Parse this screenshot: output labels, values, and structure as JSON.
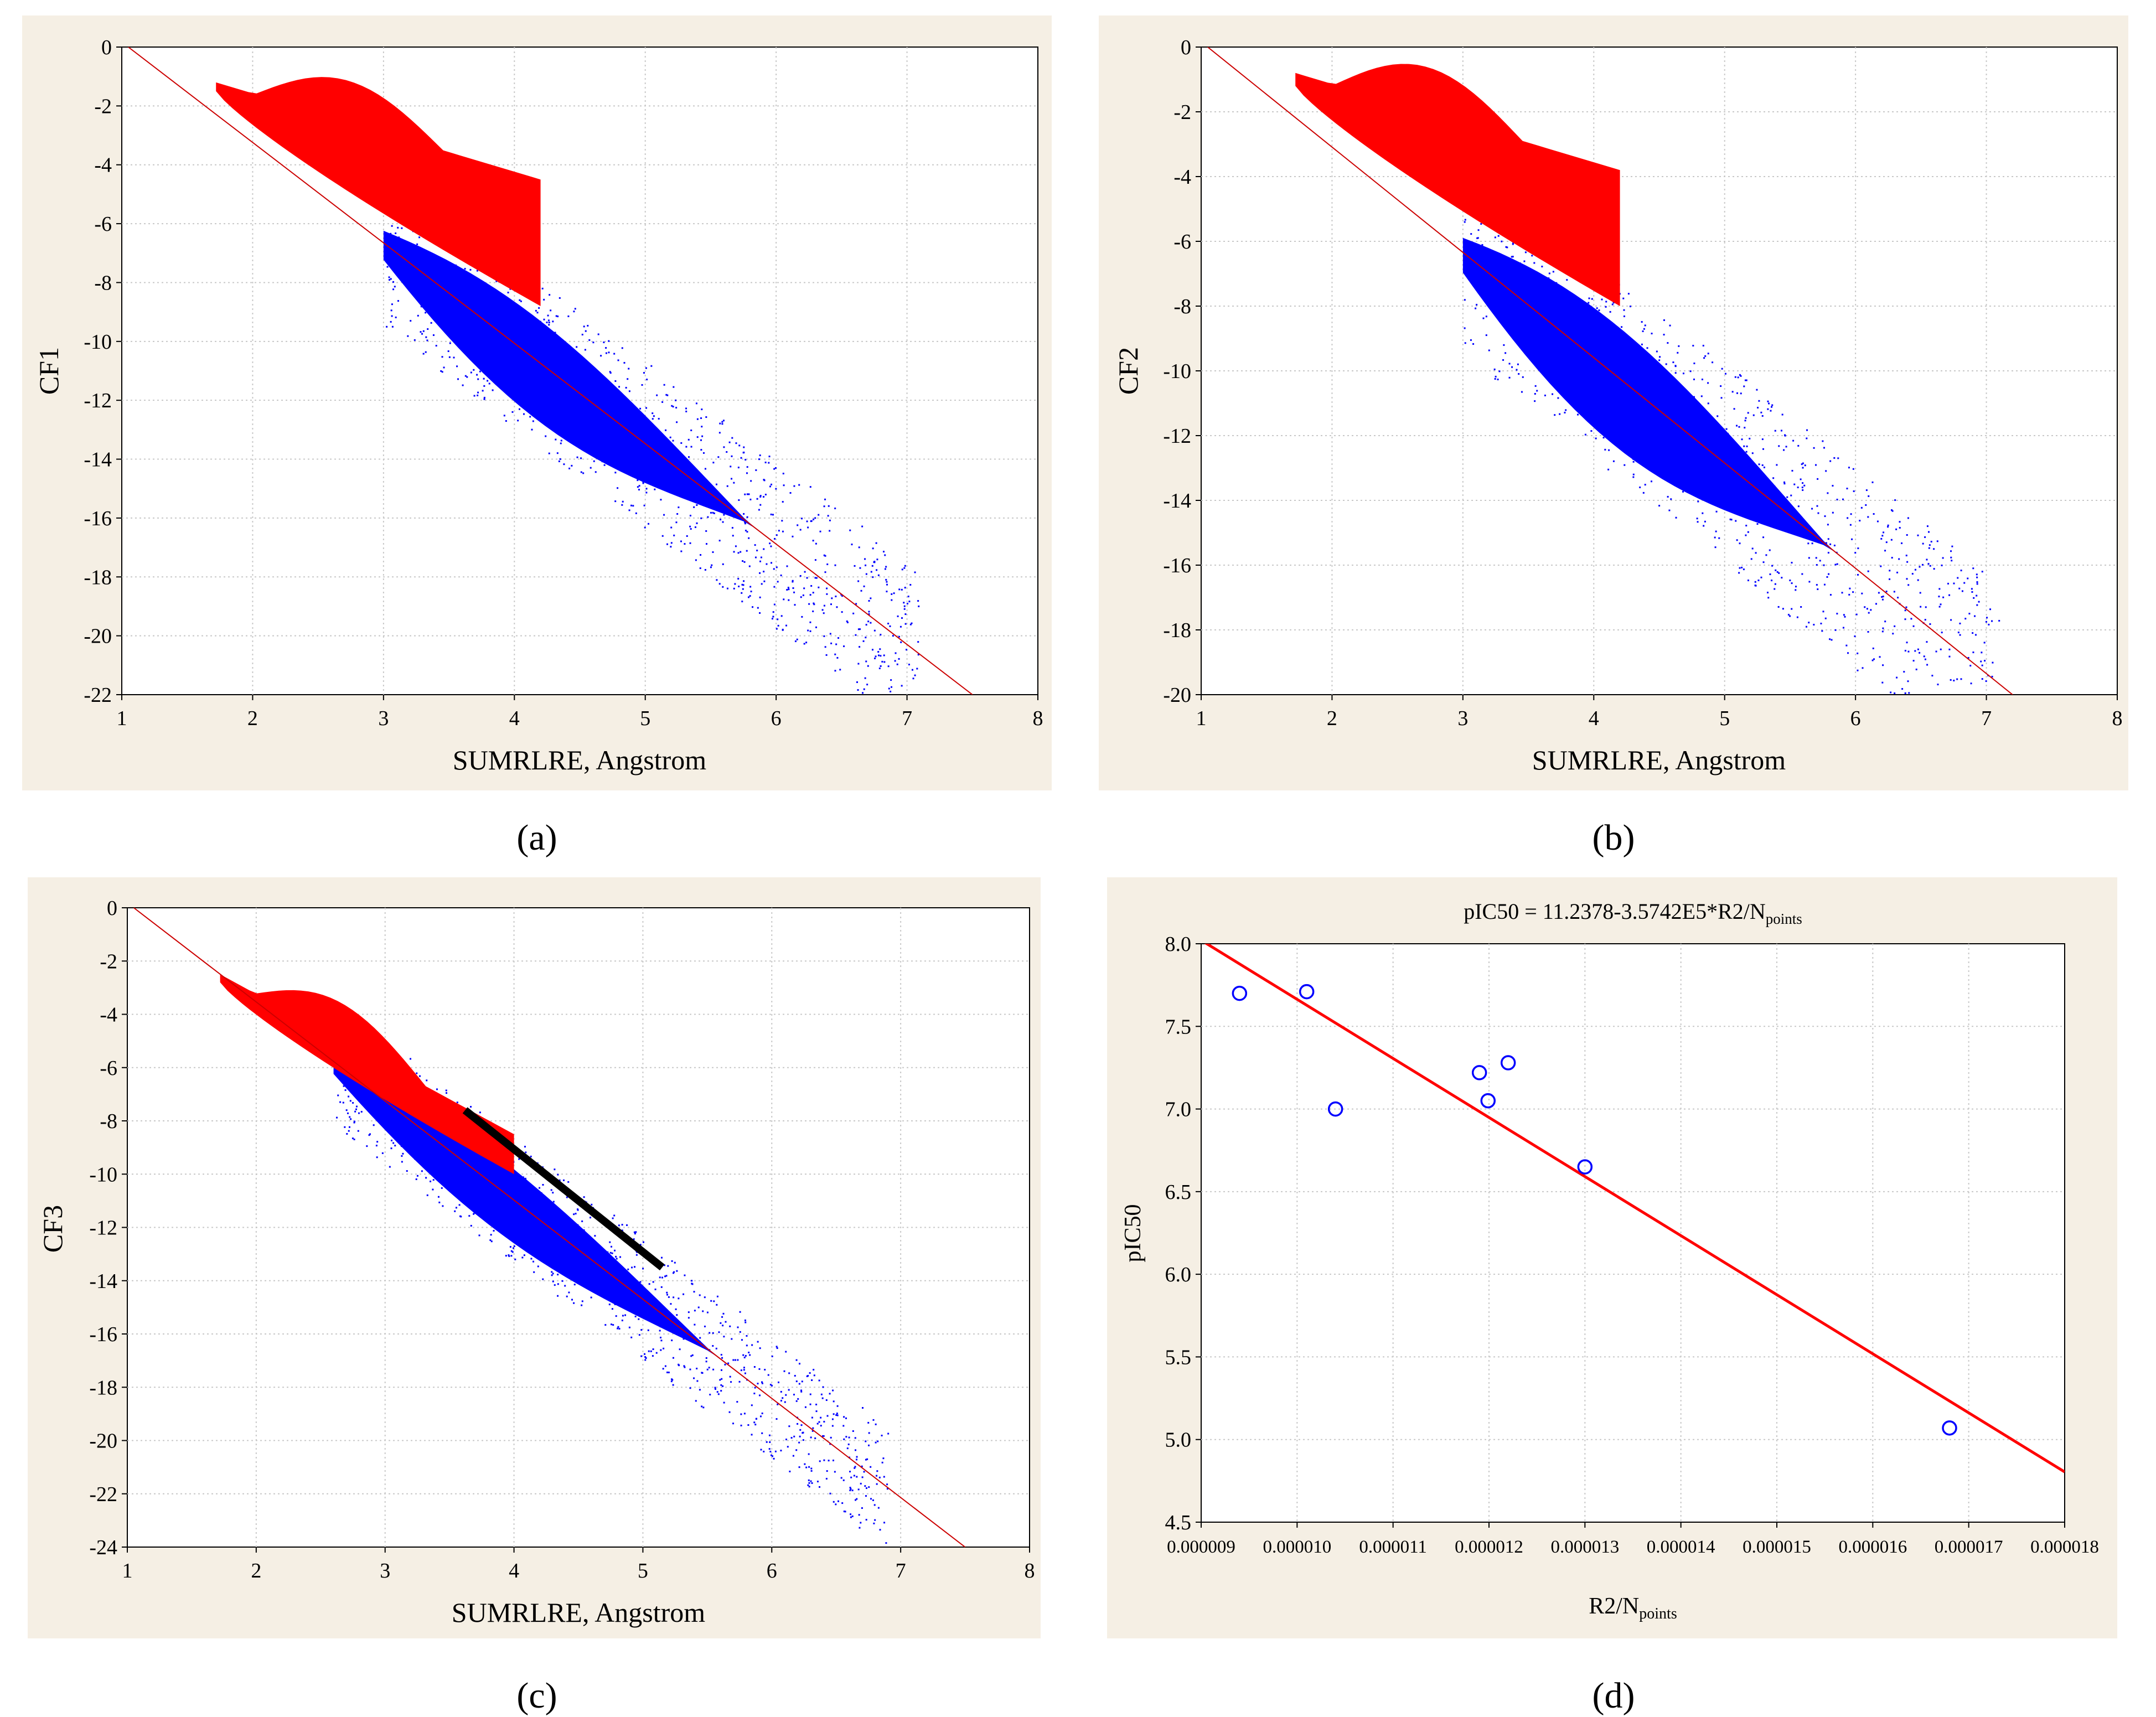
{
  "figure": {
    "panel_labels": [
      "(a)",
      "(b)",
      "(c)",
      "(d)"
    ],
    "colors": {
      "panel_background": "#f5efe4",
      "plot_background": "#ffffff",
      "grid": "#c8c8c8",
      "class1_points": "#ff0000",
      "class2_points": "#0000ff",
      "fit_line_thin": "#cc0000",
      "fit_line_d": "#ff0000",
      "marker_d": "#0000ff",
      "highlight_line": "#000000"
    }
  },
  "chart_data": [
    {
      "id": "a",
      "type": "scatter",
      "title": "",
      "xlabel": "SUMRLRE, Angstrom",
      "ylabel": "CF1",
      "xlim": [
        1,
        8
      ],
      "ylim": [
        -22,
        0
      ],
      "xticks": [
        "1",
        "2",
        "3",
        "4",
        "5",
        "6",
        "7",
        "8"
      ],
      "yticks": [
        "0",
        "-2",
        "-4",
        "-6",
        "-8",
        "-10",
        "-12",
        "-14",
        "-16",
        "-18",
        "-20",
        "-22"
      ],
      "grid": true,
      "fit_line": {
        "x": [
          1.05,
          7.5
        ],
        "y": [
          0,
          -22
        ]
      },
      "series": [
        {
          "name": "blue",
          "color": "#0000ff",
          "x_range": [
            3.0,
            6.8
          ],
          "y_at": "fit",
          "spread": 2.2
        },
        {
          "name": "red",
          "color": "#ff0000",
          "x_range": [
            1.72,
            4.2
          ],
          "y_upper": [
            -1.2,
            -4.5
          ],
          "y_lower": [
            -1.5,
            -8.8
          ]
        }
      ]
    },
    {
      "id": "b",
      "type": "scatter",
      "title": "",
      "xlabel": "SUMRLRE, Angstrom",
      "ylabel": "CF2",
      "xlim": [
        1,
        8
      ],
      "ylim": [
        -20,
        0
      ],
      "xticks": [
        "1",
        "2",
        "3",
        "4",
        "5",
        "6",
        "7",
        "8"
      ],
      "yticks": [
        "0",
        "-2",
        "-4",
        "-6",
        "-8",
        "-10",
        "-12",
        "-14",
        "-16",
        "-18",
        "-20"
      ],
      "grid": true,
      "fit_line": {
        "x": [
          1.05,
          7.2
        ],
        "y": [
          0,
          -20
        ]
      },
      "series": [
        {
          "name": "blue",
          "color": "#0000ff",
          "x_range": [
            3.0,
            6.8
          ],
          "y_at": "fit",
          "spread": 2.4
        },
        {
          "name": "red",
          "color": "#ff0000",
          "x_range": [
            1.72,
            4.2
          ],
          "y_upper": [
            -0.8,
            -3.8
          ],
          "y_lower": [
            -1.2,
            -8.0
          ]
        }
      ]
    },
    {
      "id": "c",
      "type": "scatter",
      "title": "",
      "xlabel": "SUMRLRE, Angstrom",
      "ylabel": "CF3",
      "xlim": [
        1,
        8
      ],
      "ylim": [
        -24,
        0
      ],
      "xticks": [
        "1",
        "2",
        "3",
        "4",
        "5",
        "6",
        "7",
        "8"
      ],
      "yticks": [
        "0",
        "-2",
        "-4",
        "-6",
        "-8",
        "-10",
        "-12",
        "-14",
        "-16",
        "-18",
        "-20",
        "-22",
        "-24"
      ],
      "grid": true,
      "fit_line": {
        "x": [
          1.05,
          7.5
        ],
        "y": [
          0,
          -24
        ]
      },
      "highlight_line": {
        "x": [
          3.62,
          5.15
        ],
        "y": [
          -7.6,
          -13.5
        ]
      },
      "series": [
        {
          "name": "blue",
          "color": "#0000ff",
          "x_range": [
            2.6,
            6.6
          ],
          "y_at": "fit",
          "spread": 1.8
        },
        {
          "name": "red",
          "color": "#ff0000",
          "x_range": [
            1.72,
            4.0
          ],
          "y_upper": [
            -2.5,
            -8.5
          ],
          "y_lower": [
            -2.8,
            -10.0
          ]
        }
      ]
    },
    {
      "id": "d",
      "type": "scatter",
      "title": "pIC50 = 11.2378-3.5742E5*R2/N",
      "title_sub": "points",
      "xlabel": "R2/N",
      "xlabel_sub": "points",
      "ylabel": "pIC50",
      "xlim": [
        9e-06,
        1.8e-05
      ],
      "ylim": [
        4.5,
        8.0
      ],
      "xticks": [
        "0.000009",
        "0.000010",
        "0.000011",
        "0.000012",
        "0.000013",
        "0.000014",
        "0.000015",
        "0.000016",
        "0.000017",
        "0.000018"
      ],
      "yticks": [
        "8.0",
        "7.5",
        "7.0",
        "6.5",
        "6.0",
        "5.5",
        "5.0",
        "4.5"
      ],
      "grid": true,
      "fit_line": {
        "x": [
          9e-06,
          1.8e-05
        ],
        "y": [
          8.021,
          4.804
        ]
      },
      "points": {
        "x": [
          9.4e-06,
          1.01e-05,
          1.04e-05,
          1.19e-05,
          1.199e-05,
          1.22e-05,
          1.3e-05,
          1.68e-05
        ],
        "y": [
          7.7,
          7.71,
          7.0,
          7.22,
          7.05,
          7.28,
          6.65,
          5.07
        ]
      }
    }
  ]
}
